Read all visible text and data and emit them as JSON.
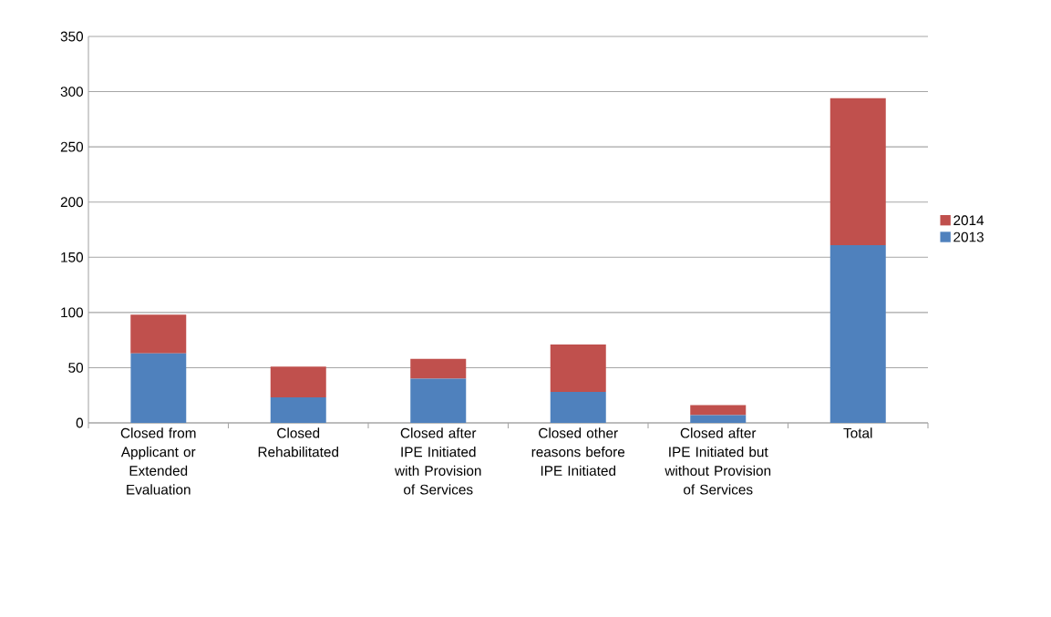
{
  "chart_data": {
    "type": "bar",
    "stacked": true,
    "categories": [
      "Closed from Applicant or Extended Evaluation",
      "Closed Rehabilitated",
      "Closed after IPE Initiated with Provision of Services",
      "Closed other reasons before IPE Initiated",
      "Closed after IPE Initiated but without Provision of Services",
      "Total"
    ],
    "series": [
      {
        "name": "2013",
        "color": "#4f81bd",
        "values": [
          63,
          23,
          40,
          28,
          7,
          161
        ]
      },
      {
        "name": "2014",
        "color": "#c0504d",
        "values": [
          35,
          28,
          18,
          43,
          9,
          133
        ]
      }
    ],
    "ylim": [
      0,
      350
    ],
    "yticks": [
      0,
      50,
      100,
      150,
      200,
      250,
      300,
      350
    ],
    "grid": "y",
    "legend": "right"
  }
}
